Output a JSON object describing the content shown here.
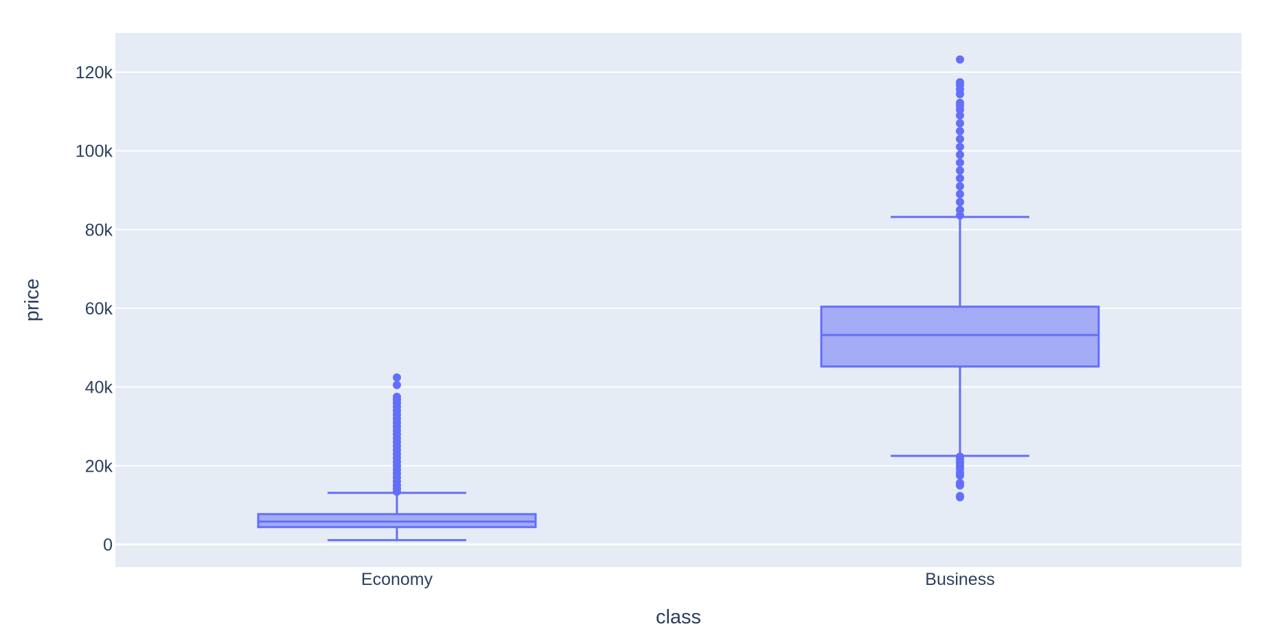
{
  "chart_data": {
    "type": "box",
    "title": "",
    "xlabel": "class",
    "ylabel": "price",
    "ylim": [
      -5500,
      130000
    ],
    "yticks": [
      0,
      20000,
      40000,
      60000,
      80000,
      100000,
      120000
    ],
    "ytick_labels": [
      "0",
      "20k",
      "40k",
      "60k",
      "80k",
      "100k",
      "120k"
    ],
    "grid": true,
    "legend": "none",
    "categories": [
      "Economy",
      "Business"
    ],
    "boxes": [
      {
        "category": "Economy",
        "min": 1100,
        "q1": 4400,
        "median": 5800,
        "q3": 7700,
        "max": 13100,
        "outliers": [
          13400,
          14200,
          15000,
          16000,
          17000,
          18000,
          19000,
          20000,
          21000,
          22000,
          23000,
          24000,
          25000,
          26000,
          27000,
          28000,
          29000,
          30000,
          31000,
          32000,
          33000,
          34000,
          35000,
          36000,
          36800,
          37500,
          40500,
          42400
        ]
      },
      {
        "category": "Business",
        "min": 22500,
        "q1": 45200,
        "median": 53200,
        "q3": 60400,
        "max": 83200,
        "outliers": [
          12000,
          12300,
          15000,
          15600,
          17500,
          18200,
          19200,
          20000,
          20800,
          21600,
          22300,
          83600,
          85000,
          87000,
          89000,
          91000,
          93000,
          95000,
          97000,
          99000,
          101000,
          103000,
          105000,
          107000,
          109000,
          110500,
          111500,
          112200,
          114400,
          115600,
          116700,
          117400,
          123200
        ]
      }
    ],
    "colors": {
      "box_line": "#636efa",
      "box_fill": "#a3abf4",
      "plot_bg": "#e5ecf6",
      "grid": "#ffffff",
      "text": "#2a3f5f"
    }
  }
}
